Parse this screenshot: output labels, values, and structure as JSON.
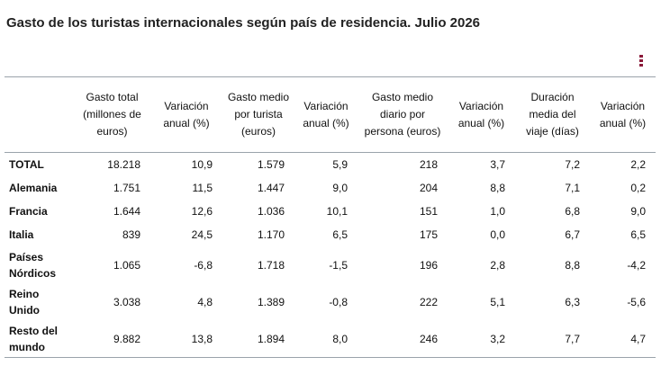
{
  "title": "Gasto de los turistas internacionales según país de residencia. Julio 2026",
  "menu_icon": "vertical-ellipsis-icon",
  "accent_color": "#8b1a3a",
  "table": {
    "headers": [
      "",
      "Gasto total (millones de euros)",
      "Variación anual (%)",
      "Gasto medio por turista (euros)",
      "Variación anual (%)",
      "Gasto medio diario por persona (euros)",
      "Variación anual (%)",
      "Duración media del viaje (días)",
      "Variación anual (%)"
    ],
    "rows": [
      [
        "TOTAL",
        "18.218",
        "10,9",
        "1.579",
        "5,9",
        "218",
        "3,7",
        "7,2",
        "2,2"
      ],
      [
        "Alemania",
        "1.751",
        "11,5",
        "1.447",
        "9,0",
        "204",
        "8,8",
        "7,1",
        "0,2"
      ],
      [
        "Francia",
        "1.644",
        "12,6",
        "1.036",
        "10,1",
        "151",
        "1,0",
        "6,8",
        "9,0"
      ],
      [
        "Italia",
        "839",
        "24,5",
        "1.170",
        "6,5",
        "175",
        "0,0",
        "6,7",
        "6,5"
      ],
      [
        "Países Nórdicos",
        "1.065",
        "-6,8",
        "1.718",
        "-1,5",
        "196",
        "2,8",
        "8,8",
        "-4,2"
      ],
      [
        "Reino Unido",
        "3.038",
        "4,8",
        "1.389",
        "-0,8",
        "222",
        "5,1",
        "6,3",
        "-5,6"
      ],
      [
        "Resto del mundo",
        "9.882",
        "13,8",
        "1.894",
        "8,0",
        "246",
        "3,2",
        "7,7",
        "4,7"
      ]
    ]
  }
}
